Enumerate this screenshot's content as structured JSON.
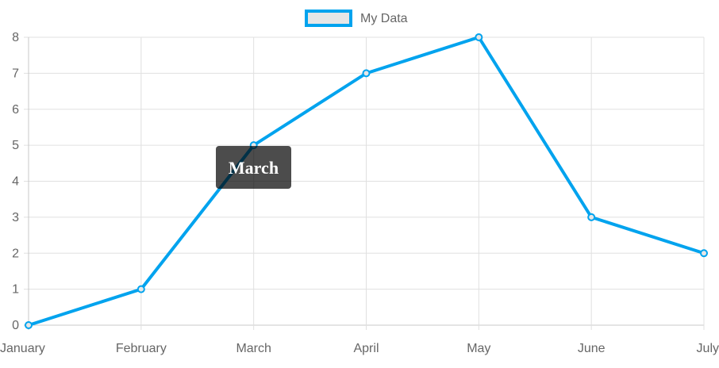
{
  "chart_data": {
    "type": "line",
    "categories": [
      "January",
      "February",
      "March",
      "April",
      "May",
      "June",
      "July"
    ],
    "series": [
      {
        "name": "My Data",
        "values": [
          0,
          1,
          5,
          7,
          8,
          3,
          2
        ]
      }
    ],
    "ylim": [
      0,
      8
    ],
    "yticks": [
      "0",
      "1",
      "2",
      "3",
      "4",
      "5",
      "6",
      "7",
      "8"
    ],
    "grid": true,
    "legend_position": "top",
    "tooltip": {
      "text": "March",
      "category": "March"
    },
    "colors": {
      "line": "#00a3ee",
      "legend_fill": "#e6e6e6",
      "grid": "#e0e0e0",
      "tooltip_bg": "rgba(0,0,0,0.7)"
    }
  }
}
